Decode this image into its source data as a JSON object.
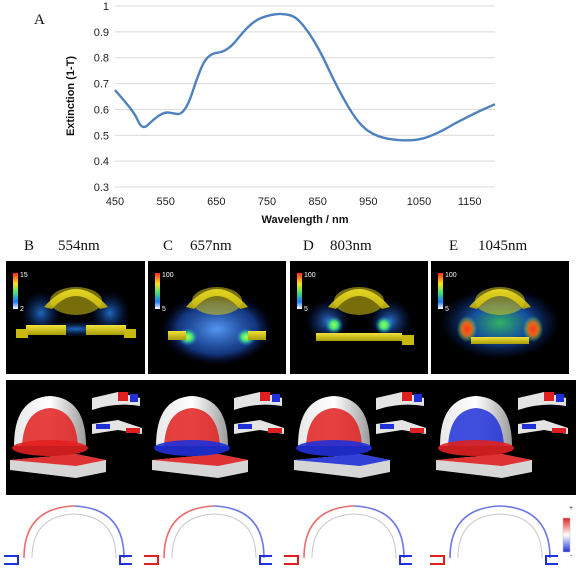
{
  "panel_a": {
    "letter": "A"
  },
  "chart_data": {
    "type": "line",
    "xlabel": "Wavelength / nm",
    "ylabel": "Extinction (1-T)",
    "xlim": [
      450,
      1200
    ],
    "ylim": [
      0.3,
      1.0
    ],
    "x_ticks": [
      450,
      550,
      650,
      750,
      850,
      950,
      1050,
      1150
    ],
    "y_ticks": [
      0.3,
      0.4,
      0.5,
      0.6,
      0.7,
      0.8,
      0.9,
      1.0
    ],
    "y_tick_labels": [
      "0.3",
      "0.4",
      "0.5",
      "0.6",
      "0.7",
      "0.8",
      "0.9",
      "1"
    ],
    "grid": "horizontal",
    "series": [
      {
        "color": "#4f81bd",
        "x": [
          450,
          470,
          490,
          500,
          510,
          520,
          535,
          550,
          565,
          580,
          595,
          610,
          625,
          640,
          655,
          665,
          680,
          695,
          710,
          730,
          750,
          770,
          790,
          805,
          820,
          840,
          860,
          880,
          900,
          920,
          940,
          960,
          980,
          1000,
          1020,
          1040,
          1060,
          1080,
          1100,
          1120,
          1140,
          1160,
          1180,
          1200
        ],
        "y": [
          0.675,
          0.63,
          0.58,
          0.535,
          0.53,
          0.55,
          0.575,
          0.59,
          0.585,
          0.58,
          0.62,
          0.71,
          0.785,
          0.815,
          0.82,
          0.825,
          0.845,
          0.88,
          0.915,
          0.948,
          0.962,
          0.97,
          0.968,
          0.958,
          0.93,
          0.875,
          0.805,
          0.72,
          0.645,
          0.578,
          0.53,
          0.503,
          0.49,
          0.483,
          0.48,
          0.481,
          0.488,
          0.503,
          0.522,
          0.545,
          0.565,
          0.585,
          0.603,
          0.62
        ]
      }
    ]
  },
  "panels": [
    {
      "letter": "B",
      "wavelength": "554nm",
      "cb_max": "15",
      "cb_min": "2"
    },
    {
      "letter": "C",
      "wavelength": "657nm",
      "cb_max": "100",
      "cb_min": "5"
    },
    {
      "letter": "D",
      "wavelength": "803nm",
      "cb_max": "100",
      "cb_min": "5"
    },
    {
      "letter": "E",
      "wavelength": "1045nm",
      "cb_max": "100",
      "cb_min": "5"
    }
  ],
  "charge_legend": {
    "plus": "+",
    "minus": "-"
  },
  "colors": {
    "line": "#4f81bd",
    "gold": "#d9c814",
    "field_blue": "#1f6fe0",
    "hotspot_green": "#3fe07a",
    "hotspot_red": "#e0281e",
    "charge_red": "#e02020",
    "charge_blue": "#2030d8"
  }
}
